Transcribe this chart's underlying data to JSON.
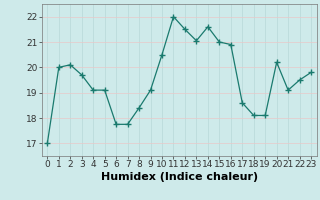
{
  "x": [
    0,
    1,
    2,
    3,
    4,
    5,
    6,
    7,
    8,
    9,
    10,
    11,
    12,
    13,
    14,
    15,
    16,
    17,
    18,
    19,
    20,
    21,
    22,
    23
  ],
  "y": [
    17.0,
    20.0,
    20.1,
    19.7,
    19.1,
    19.1,
    17.75,
    17.75,
    18.4,
    19.1,
    20.5,
    22.0,
    21.5,
    21.05,
    21.6,
    21.0,
    20.9,
    18.6,
    18.1,
    18.1,
    20.2,
    19.1,
    19.5,
    19.8
  ],
  "line_color": "#1a7a6e",
  "marker": "+",
  "marker_size": 4,
  "bg_color": "#ceeaea",
  "grid_v_color": "#b8d8d8",
  "grid_h_color": "#e8c8c8",
  "xlabel": "Humidex (Indice chaleur)",
  "ylim": [
    16.5,
    22.5
  ],
  "xlim": [
    -0.5,
    23.5
  ],
  "yticks": [
    17,
    18,
    19,
    20,
    21,
    22
  ],
  "xticks": [
    0,
    1,
    2,
    3,
    4,
    5,
    6,
    7,
    8,
    9,
    10,
    11,
    12,
    13,
    14,
    15,
    16,
    17,
    18,
    19,
    20,
    21,
    22,
    23
  ],
  "tick_fontsize": 6.5,
  "xlabel_fontsize": 8
}
